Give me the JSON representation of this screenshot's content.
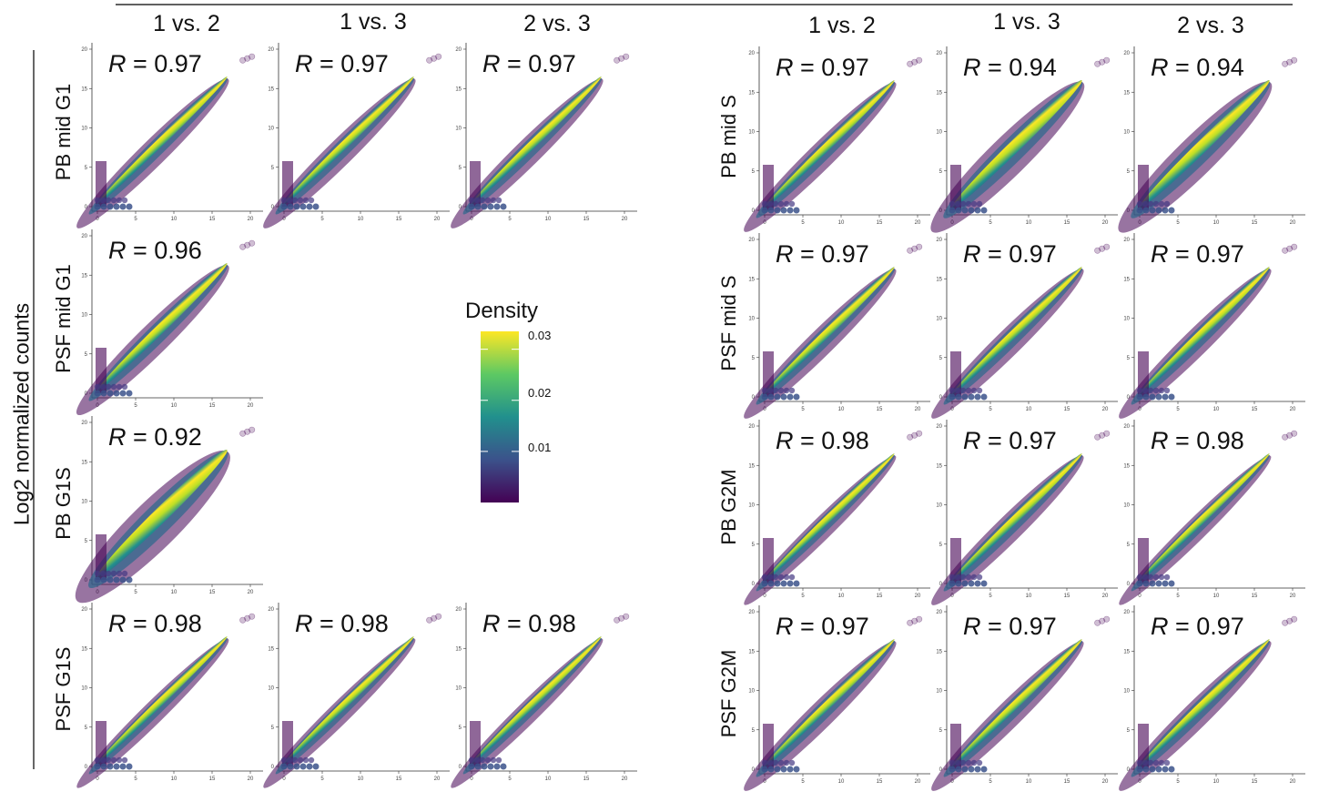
{
  "y_axis_label": "Log2 normalized counts",
  "columns_left": [
    "1 vs. 2",
    "1 vs. 3",
    "2 vs. 3"
  ],
  "columns_right": [
    "1 vs. 2",
    "1 vs. 3",
    "2 vs. 3"
  ],
  "legend": {
    "title": "Density",
    "ticks": [
      "0.01",
      "0.02",
      "0.03"
    ],
    "tick_values": [
      0.01,
      0.02,
      0.03
    ],
    "range": [
      0,
      0.0335
    ],
    "colors": [
      "#440154",
      "#3b528b",
      "#21908d",
      "#5dc963",
      "#fde725"
    ]
  },
  "chart_data": {
    "type": "scatter",
    "point_color": "#440154",
    "xlim": [
      0,
      20
    ],
    "ylim": [
      0,
      20
    ],
    "x_ticks": [
      0,
      5,
      10,
      15,
      20
    ],
    "y_ticks": [
      0,
      5,
      10,
      15,
      20
    ],
    "panels": [
      {
        "row": "PB mid G1",
        "group": "left",
        "comparison": "1 vs. 2",
        "r_label": "R",
        "r_value": "= 0.97"
      },
      {
        "row": "PB mid G1",
        "group": "left",
        "comparison": "1 vs. 3",
        "r_label": "R",
        "r_value": "= 0.97"
      },
      {
        "row": "PB mid G1",
        "group": "left",
        "comparison": "2 vs. 3",
        "r_label": "R",
        "r_value": "= 0.97"
      },
      {
        "row": "PSF mid G1",
        "group": "left",
        "comparison": "1 vs. 2",
        "r_label": "R",
        "r_value": "= 0.96"
      },
      {
        "row": "PB G1S",
        "group": "left",
        "comparison": "1 vs. 2",
        "r_label": "R",
        "r_value": "= 0.92"
      },
      {
        "row": "PSF G1S",
        "group": "left",
        "comparison": "1 vs. 2",
        "r_label": "R",
        "r_value": "= 0.98"
      },
      {
        "row": "PSF G1S",
        "group": "left",
        "comparison": "1 vs. 3",
        "r_label": "R",
        "r_value": "= 0.98"
      },
      {
        "row": "PSF G1S",
        "group": "left",
        "comparison": "2 vs. 3",
        "r_label": "R",
        "r_value": "= 0.98"
      },
      {
        "row": "PB mid S",
        "group": "right",
        "comparison": "1 vs. 2",
        "r_label": "R",
        "r_value": "= 0.97"
      },
      {
        "row": "PB mid S",
        "group": "right",
        "comparison": "1 vs. 3",
        "r_label": "R",
        "r_value": "= 0.94"
      },
      {
        "row": "PB mid S",
        "group": "right",
        "comparison": "2 vs. 3",
        "r_label": "R",
        "r_value": "= 0.94"
      },
      {
        "row": "PSF mid S",
        "group": "right",
        "comparison": "1 vs. 2",
        "r_label": "R",
        "r_value": "= 0.97"
      },
      {
        "row": "PSF mid S",
        "group": "right",
        "comparison": "1 vs. 3",
        "r_label": "R",
        "r_value": "= 0.97"
      },
      {
        "row": "PSF mid S",
        "group": "right",
        "comparison": "2 vs. 3",
        "r_label": "R",
        "r_value": "= 0.97"
      },
      {
        "row": "PB G2M",
        "group": "right",
        "comparison": "1 vs. 2",
        "r_label": "R",
        "r_value": "= 0.98"
      },
      {
        "row": "PB G2M",
        "group": "right",
        "comparison": "1 vs. 3",
        "r_label": "R",
        "r_value": "= 0.97"
      },
      {
        "row": "PB G2M",
        "group": "right",
        "comparison": "2 vs. 3",
        "r_label": "R",
        "r_value": "= 0.98"
      },
      {
        "row": "PSF G2M",
        "group": "right",
        "comparison": "1 vs. 2",
        "r_label": "R",
        "r_value": "= 0.97"
      },
      {
        "row": "PSF G2M",
        "group": "right",
        "comparison": "1 vs. 3",
        "r_label": "R",
        "r_value": "= 0.97"
      },
      {
        "row": "PSF G2M",
        "group": "right",
        "comparison": "2 vs. 3",
        "r_label": "R",
        "r_value": "= 0.97"
      }
    ]
  }
}
